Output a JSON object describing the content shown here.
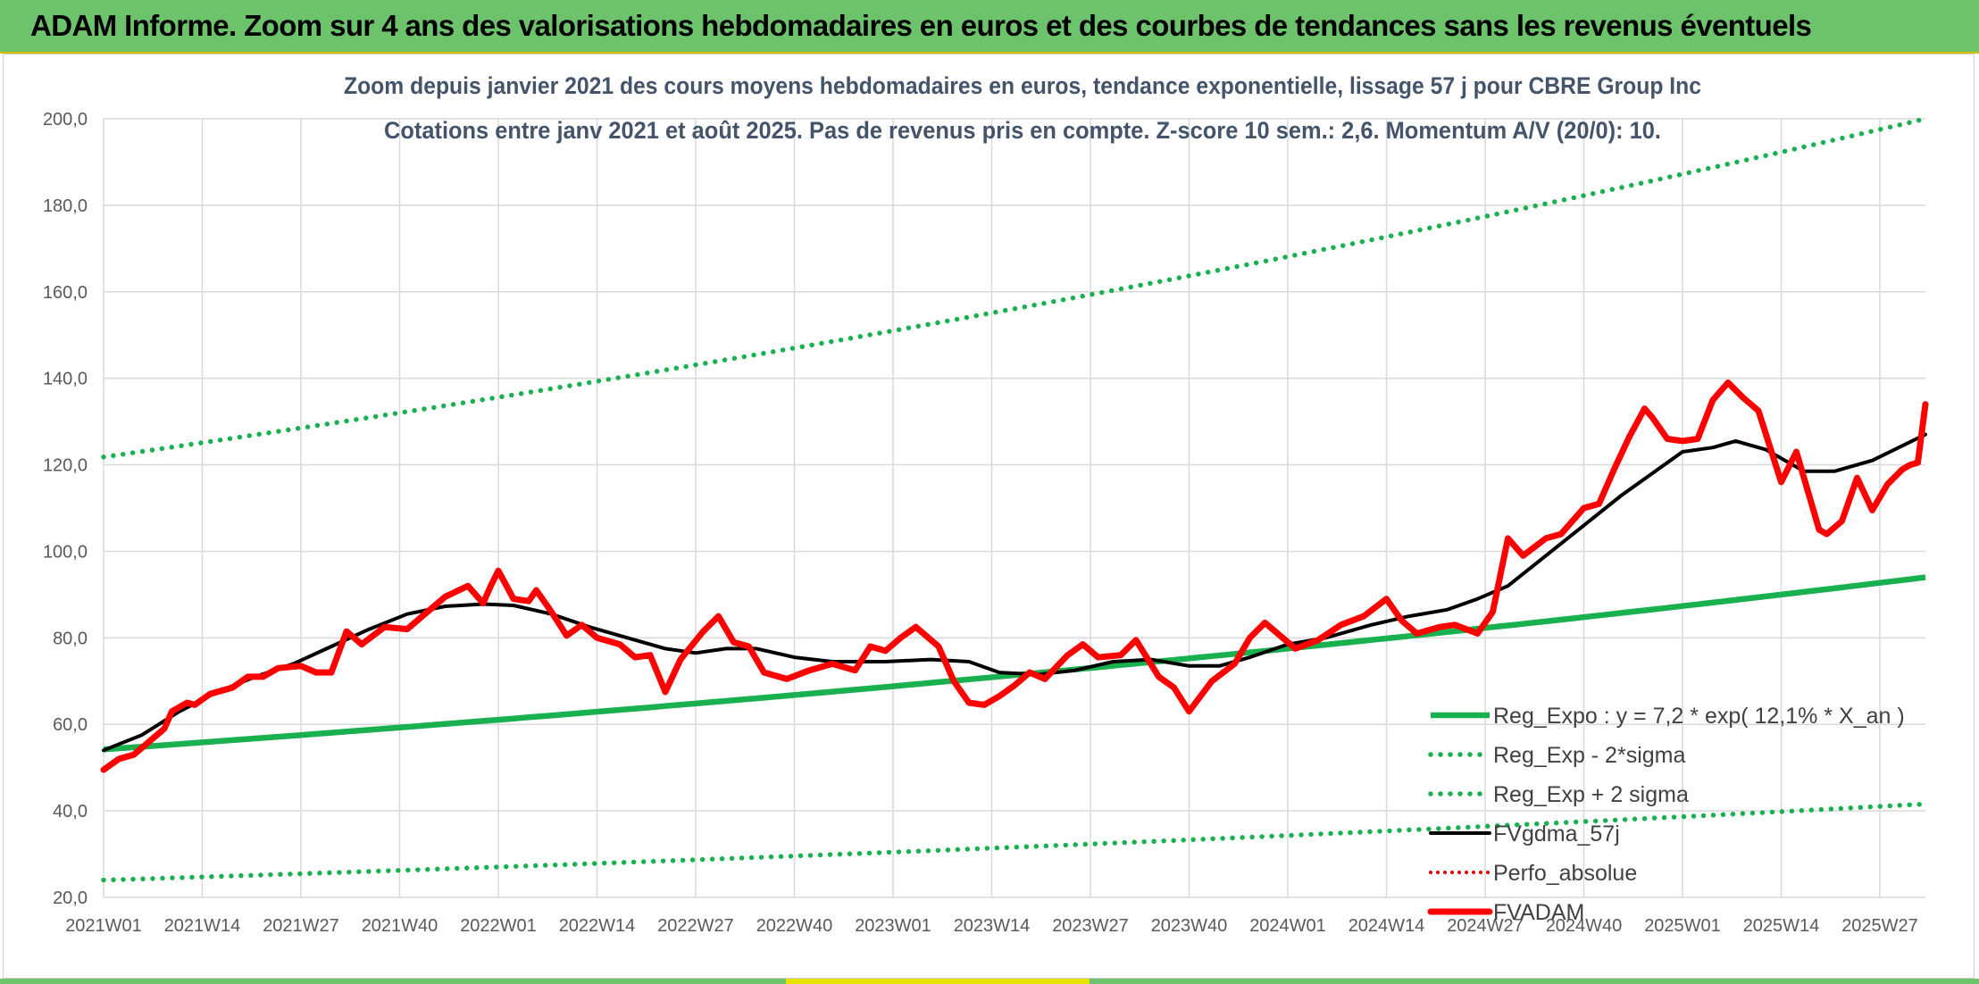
{
  "banner": {
    "title": "ADAM Informe. Zoom sur 4 ans des valorisations hebdomadaires en euros et des courbes de tendances sans les revenus éventuels"
  },
  "colors": {
    "banner": "#6cc36b",
    "reg_expo": "#19b04f",
    "sigma": "#19b04f",
    "fvgdma": "#000000",
    "perfo": "#e00000",
    "fvadam": "#ff0000",
    "grid": "#d9d9d9",
    "title_text": "#44546a"
  },
  "chart_data": {
    "type": "line",
    "title": "Zoom depuis janvier 2021 des cours moyens hebdomadaires en euros, tendance exponentielle, lissage 57 j pour CBRE Group Inc",
    "subtitle": "Cotations entre janv 2021 et août 2025. Pas de revenus pris en compte. Z-score 10 sem.: 2,6. Momentum A/V (20/0): 10.",
    "ylim": [
      20,
      200
    ],
    "yticks": [
      "20,0",
      "40,0",
      "60,0",
      "80,0",
      "100,0",
      "120,0",
      "140,0",
      "160,0",
      "180,0",
      "200,0"
    ],
    "x_start": "2021W01",
    "x_end": "2025W33",
    "xticks": [
      "2021W01",
      "2021W14",
      "2021W27",
      "2021W40",
      "2022W01",
      "2022W14",
      "2022W27",
      "2022W40",
      "2023W01",
      "2023W14",
      "2023W27",
      "2023W40",
      "2024W01",
      "2024W14",
      "2024W27",
      "2024W40",
      "2025W01",
      "2025W14",
      "2025W27"
    ],
    "grid": true,
    "legend_position": "bottom-right",
    "series": [
      {
        "name": "Reg_Expo : y = 7,2 * exp( 12,1% *  X_an )",
        "style": "solid-thick",
        "start": 54.2,
        "end": 94.0
      },
      {
        "name": "Reg_Exp - 2*sigma",
        "style": "dotted",
        "start": 24.0,
        "end": 41.6
      },
      {
        "name": "Reg_Exp + 2 sigma",
        "style": "dotted",
        "start": 121.8,
        "end": 200.0,
        "clip_max": 200
      },
      {
        "name": "FVgdma_57j",
        "style": "solid",
        "points": [
          [
            "2021W01",
            54
          ],
          [
            "2021W06",
            57.5
          ],
          [
            "2021W11",
            63
          ],
          [
            "2021W16",
            67.5
          ],
          [
            "2021W21",
            71
          ],
          [
            "2021W26",
            74
          ],
          [
            "2021W31",
            78
          ],
          [
            "2021W36",
            82
          ],
          [
            "2021W41",
            85.5
          ],
          [
            "2021W46",
            87.3
          ],
          [
            "2021W51",
            87.8
          ],
          [
            "2022W03",
            87.5
          ],
          [
            "2022W08",
            85.5
          ],
          [
            "2022W13",
            82.5
          ],
          [
            "2022W18",
            80
          ],
          [
            "2022W23",
            77.5
          ],
          [
            "2022W27",
            76.5
          ],
          [
            "2022W31",
            77.5
          ],
          [
            "2022W35",
            77.5
          ],
          [
            "2022W40",
            75.5
          ],
          [
            "2022W45",
            74.5
          ],
          [
            "2022W52",
            74.5
          ],
          [
            "2023W06",
            75
          ],
          [
            "2023W11",
            74.5
          ],
          [
            "2023W15",
            72
          ],
          [
            "2023W20",
            71.5
          ],
          [
            "2023W25",
            72.5
          ],
          [
            "2023W30",
            74.5
          ],
          [
            "2023W35",
            75
          ],
          [
            "2023W40",
            73.5
          ],
          [
            "2023W44",
            73.5
          ],
          [
            "2023W48",
            75.5
          ],
          [
            "2024W01",
            78.5
          ],
          [
            "2024W06",
            80
          ],
          [
            "2024W12",
            83
          ],
          [
            "2024W17",
            85
          ],
          [
            "2024W22",
            86.5
          ],
          [
            "2024W26",
            89
          ],
          [
            "2024W30",
            92
          ],
          [
            "2024W35",
            99
          ],
          [
            "2024W40",
            106
          ],
          [
            "2024W45",
            113
          ],
          [
            "2024W49",
            118
          ],
          [
            "2025W01",
            123
          ],
          [
            "2025W05",
            124
          ],
          [
            "2025W08",
            125.5
          ],
          [
            "2025W12",
            123.5
          ],
          [
            "2025W17",
            118.5
          ],
          [
            "2025W21",
            118.5
          ],
          [
            "2025W26",
            121
          ],
          [
            "2025W33",
            127
          ]
        ]
      },
      {
        "name": "Perfo_absolue",
        "style": "dotted-red",
        "points": []
      },
      {
        "name": "FVADAM",
        "style": "solid-thick-red",
        "points": [
          [
            "2021W01",
            49.5
          ],
          [
            "2021W03",
            52
          ],
          [
            "2021W05",
            53
          ],
          [
            "2021W07",
            56
          ],
          [
            "2021W09",
            59
          ],
          [
            "2021W10",
            63
          ],
          [
            "2021W12",
            65
          ],
          [
            "2021W13",
            64.5
          ],
          [
            "2021W15",
            67
          ],
          [
            "2021W18",
            68.5
          ],
          [
            "2021W20",
            71
          ],
          [
            "2021W22",
            71
          ],
          [
            "2021W24",
            73
          ],
          [
            "2021W27",
            73.5
          ],
          [
            "2021W29",
            72
          ],
          [
            "2021W31",
            72
          ],
          [
            "2021W33",
            81.5
          ],
          [
            "2021W35",
            78.5
          ],
          [
            "2021W38",
            82.5
          ],
          [
            "2021W41",
            82
          ],
          [
            "2021W43",
            85
          ],
          [
            "2021W46",
            89.5
          ],
          [
            "2021W49",
            92
          ],
          [
            "2021W51",
            88
          ],
          [
            "2021W52",
            92
          ],
          [
            "2022W01",
            95.5
          ],
          [
            "2022W03",
            89
          ],
          [
            "2022W05",
            88.5
          ],
          [
            "2022W06",
            91
          ],
          [
            "2022W08",
            86
          ],
          [
            "2022W10",
            80.5
          ],
          [
            "2022W12",
            83
          ],
          [
            "2022W14",
            80
          ],
          [
            "2022W17",
            78.5
          ],
          [
            "2022W19",
            75.5
          ],
          [
            "2022W21",
            76
          ],
          [
            "2022W23",
            67.5
          ],
          [
            "2022W25",
            75
          ],
          [
            "2022W28",
            81.5
          ],
          [
            "2022W30",
            85
          ],
          [
            "2022W32",
            79
          ],
          [
            "2022W34",
            78
          ],
          [
            "2022W36",
            72
          ],
          [
            "2022W39",
            70.5
          ],
          [
            "2022W42",
            72.5
          ],
          [
            "2022W45",
            74
          ],
          [
            "2022W48",
            72.5
          ],
          [
            "2022W50",
            78
          ],
          [
            "2022W52",
            77
          ],
          [
            "2023W02",
            80
          ],
          [
            "2023W04",
            82.5
          ],
          [
            "2023W07",
            78
          ],
          [
            "2023W09",
            70
          ],
          [
            "2023W11",
            65
          ],
          [
            "2023W13",
            64.5
          ],
          [
            "2023W15",
            66.5
          ],
          [
            "2023W17",
            69
          ],
          [
            "2023W19",
            72
          ],
          [
            "2023W21",
            70.5
          ],
          [
            "2023W24",
            76
          ],
          [
            "2023W26",
            78.5
          ],
          [
            "2023W28",
            75.5
          ],
          [
            "2023W31",
            76
          ],
          [
            "2023W33",
            79.5
          ],
          [
            "2023W36",
            71
          ],
          [
            "2023W38",
            68.5
          ],
          [
            "2023W40",
            63
          ],
          [
            "2023W43",
            70
          ],
          [
            "2023W46",
            74
          ],
          [
            "2023W48",
            80
          ],
          [
            "2023W50",
            83.5
          ],
          [
            "2024W02",
            77.5
          ],
          [
            "2024W05",
            79.5
          ],
          [
            "2024W08",
            83
          ],
          [
            "2024W11",
            85
          ],
          [
            "2024W14",
            89
          ],
          [
            "2024W16",
            84
          ],
          [
            "2024W18",
            81
          ],
          [
            "2024W21",
            82.5
          ],
          [
            "2024W23",
            83
          ],
          [
            "2024W26",
            81
          ],
          [
            "2024W28",
            86
          ],
          [
            "2024W30",
            103
          ],
          [
            "2024W32",
            99
          ],
          [
            "2024W35",
            103
          ],
          [
            "2024W37",
            104
          ],
          [
            "2024W40",
            110
          ],
          [
            "2024W42",
            111
          ],
          [
            "2024W44",
            119
          ],
          [
            "2024W46",
            126.5
          ],
          [
            "2024W48",
            133
          ],
          [
            "2024W49",
            131
          ],
          [
            "2024W51",
            126
          ],
          [
            "2025W01",
            125.5
          ],
          [
            "2025W03",
            126
          ],
          [
            "2025W05",
            135
          ],
          [
            "2025W07",
            139
          ],
          [
            "2025W09",
            135.5
          ],
          [
            "2025W11",
            132.5
          ],
          [
            "2025W12",
            127
          ],
          [
            "2025W14",
            116
          ],
          [
            "2025W16",
            123
          ],
          [
            "2025W17",
            117
          ],
          [
            "2025W19",
            105
          ],
          [
            "2025W20",
            104
          ],
          [
            "2025W22",
            107
          ],
          [
            "2025W24",
            117
          ],
          [
            "2025W26",
            109.5
          ],
          [
            "2025W28",
            115.5
          ],
          [
            "2025W30",
            119
          ],
          [
            "2025W31",
            120
          ],
          [
            "2025W32",
            120.5
          ],
          [
            "2025W33",
            134
          ]
        ]
      }
    ]
  }
}
